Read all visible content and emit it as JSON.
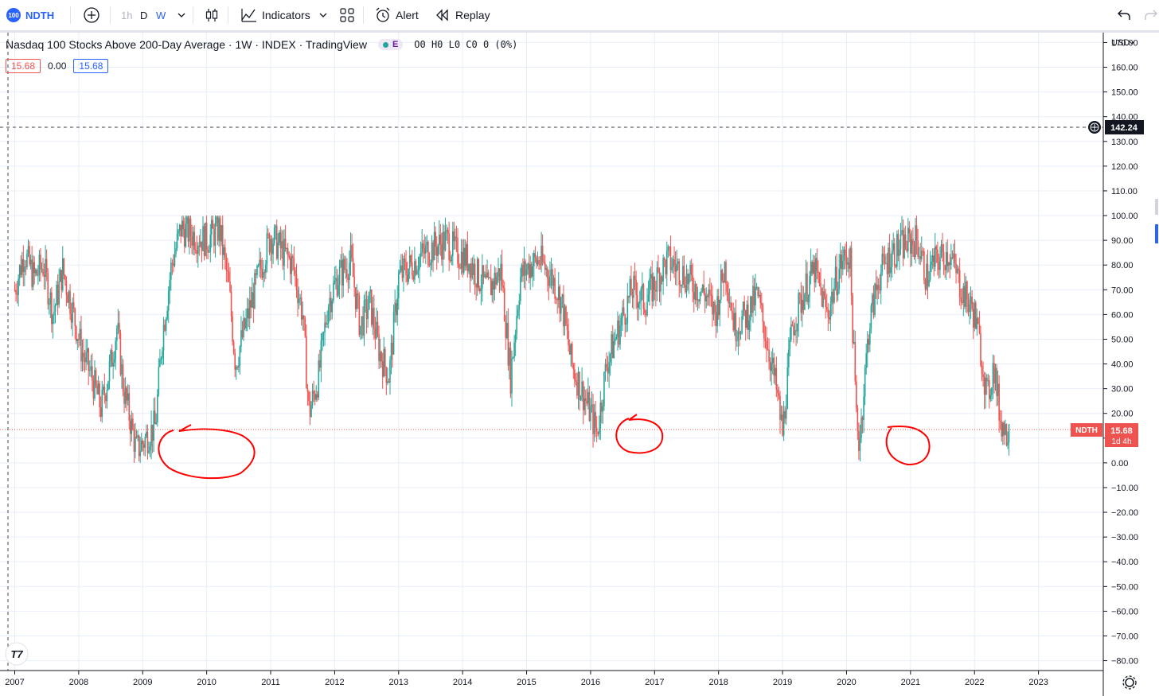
{
  "toolbar": {
    "symbol_badge": "100",
    "symbol": "NDTH",
    "tf_1h": "1h",
    "tf_d": "D",
    "tf_w": "W",
    "indicators": "Indicators",
    "alert": "Alert",
    "replay": "Replay"
  },
  "legend": {
    "title": "Nasdaq 100 Stocks Above 200-Day Average · 1W · INDEX · TradingView",
    "badge": "E",
    "ohlc": "O0 H0 L0 C0 0 (0%)",
    "value1": "15.68",
    "value2": "0.00",
    "value3": "15.68"
  },
  "price_axis": {
    "currency": "USD",
    "crosshair_label": "142.24",
    "symbol_tag": "NDTH",
    "last_value": "15.68",
    "countdown": "1d 4h"
  },
  "colors": {
    "up": "#26a69a",
    "down": "#ef5350",
    "accent": "#2962ff",
    "annotation": "#ff0000"
  },
  "chart_data": {
    "type": "candlestick",
    "title": "Nasdaq 100 Stocks Above 200-Day Average",
    "interval": "1W",
    "ylim": [
      -84,
      174
    ],
    "y_ticks": [
      170,
      160,
      150,
      140,
      130,
      120,
      110,
      100,
      90,
      80,
      70,
      60,
      50,
      40,
      30,
      20,
      10,
      0,
      -10,
      -20,
      -30,
      -40,
      -50,
      -60,
      -70,
      -80
    ],
    "y_tick_labels": [
      "170.00",
      "160.00",
      "150.00",
      "140.00",
      "130.00",
      "120.00",
      "110.00",
      "100.00",
      "90.00",
      "80.00",
      "70.00",
      "60.00",
      "50.00",
      "40.00",
      "30.00",
      "20.00",
      "10.00",
      "0.00",
      "−10.00",
      "−20.00",
      "−30.00",
      "−40.00",
      "−50.00",
      "−60.00",
      "−70.00",
      "−80.00"
    ],
    "x_ticks": [
      "2007",
      "2008",
      "2009",
      "2010",
      "2011",
      "2012",
      "2013",
      "2014",
      "2015",
      "2016",
      "2017",
      "2018",
      "2019",
      "2020",
      "2021",
      "2022",
      "2023"
    ],
    "x_range_years": [
      2006.77,
      2024.0
    ],
    "last_value": 15.68,
    "crosshair_value": 142.24,
    "series_closes": [
      [
        2007.0,
        70
      ],
      [
        2007.15,
        85
      ],
      [
        2007.3,
        75
      ],
      [
        2007.45,
        80
      ],
      [
        2007.6,
        60
      ],
      [
        2007.75,
        78
      ],
      [
        2007.9,
        62
      ],
      [
        2008.05,
        45
      ],
      [
        2008.2,
        35
      ],
      [
        2008.35,
        22
      ],
      [
        2008.5,
        40
      ],
      [
        2008.6,
        55
      ],
      [
        2008.7,
        30
      ],
      [
        2008.8,
        18
      ],
      [
        2008.9,
        5
      ],
      [
        2009.0,
        8
      ],
      [
        2009.1,
        12
      ],
      [
        2009.2,
        15
      ],
      [
        2009.3,
        50
      ],
      [
        2009.45,
        80
      ],
      [
        2009.6,
        95
      ],
      [
        2009.8,
        92
      ],
      [
        2010.0,
        90
      ],
      [
        2010.2,
        95
      ],
      [
        2010.35,
        70
      ],
      [
        2010.45,
        40
      ],
      [
        2010.6,
        55
      ],
      [
        2010.8,
        75
      ],
      [
        2011.0,
        92
      ],
      [
        2011.2,
        85
      ],
      [
        2011.35,
        80
      ],
      [
        2011.5,
        60
      ],
      [
        2011.6,
        20
      ],
      [
        2011.75,
        35
      ],
      [
        2011.9,
        65
      ],
      [
        2012.05,
        75
      ],
      [
        2012.25,
        82
      ],
      [
        2012.4,
        55
      ],
      [
        2012.55,
        65
      ],
      [
        2012.7,
        45
      ],
      [
        2012.85,
        35
      ],
      [
        2013.0,
        75
      ],
      [
        2013.2,
        80
      ],
      [
        2013.4,
        85
      ],
      [
        2013.6,
        88
      ],
      [
        2013.75,
        90
      ],
      [
        2013.9,
        85
      ],
      [
        2014.1,
        82
      ],
      [
        2014.25,
        75
      ],
      [
        2014.4,
        70
      ],
      [
        2014.6,
        78
      ],
      [
        2014.75,
        35
      ],
      [
        2014.9,
        75
      ],
      [
        2015.05,
        80
      ],
      [
        2015.2,
        82
      ],
      [
        2015.4,
        75
      ],
      [
        2015.55,
        65
      ],
      [
        2015.7,
        40
      ],
      [
        2015.85,
        30
      ],
      [
        2016.0,
        20
      ],
      [
        2016.1,
        12
      ],
      [
        2016.25,
        40
      ],
      [
        2016.45,
        55
      ],
      [
        2016.65,
        70
      ],
      [
        2016.85,
        65
      ],
      [
        2017.05,
        75
      ],
      [
        2017.2,
        82
      ],
      [
        2017.4,
        78
      ],
      [
        2017.6,
        72
      ],
      [
        2017.8,
        68
      ],
      [
        2017.95,
        60
      ],
      [
        2018.1,
        80
      ],
      [
        2018.25,
        55
      ],
      [
        2018.45,
        60
      ],
      [
        2018.6,
        68
      ],
      [
        2018.75,
        50
      ],
      [
        2018.9,
        30
      ],
      [
        2019.0,
        12
      ],
      [
        2019.15,
        55
      ],
      [
        2019.35,
        70
      ],
      [
        2019.5,
        78
      ],
      [
        2019.7,
        60
      ],
      [
        2019.9,
        80
      ],
      [
        2020.05,
        85
      ],
      [
        2020.15,
        20
      ],
      [
        2020.2,
        8
      ],
      [
        2020.35,
        55
      ],
      [
        2020.5,
        75
      ],
      [
        2020.7,
        85
      ],
      [
        2020.9,
        88
      ],
      [
        2021.1,
        90
      ],
      [
        2021.25,
        75
      ],
      [
        2021.4,
        82
      ],
      [
        2021.6,
        85
      ],
      [
        2021.8,
        70
      ],
      [
        2022.0,
        60
      ],
      [
        2022.1,
        45
      ],
      [
        2022.2,
        25
      ],
      [
        2022.3,
        40
      ],
      [
        2022.4,
        18
      ],
      [
        2022.5,
        12
      ],
      [
        2022.55,
        15.68
      ]
    ]
  }
}
